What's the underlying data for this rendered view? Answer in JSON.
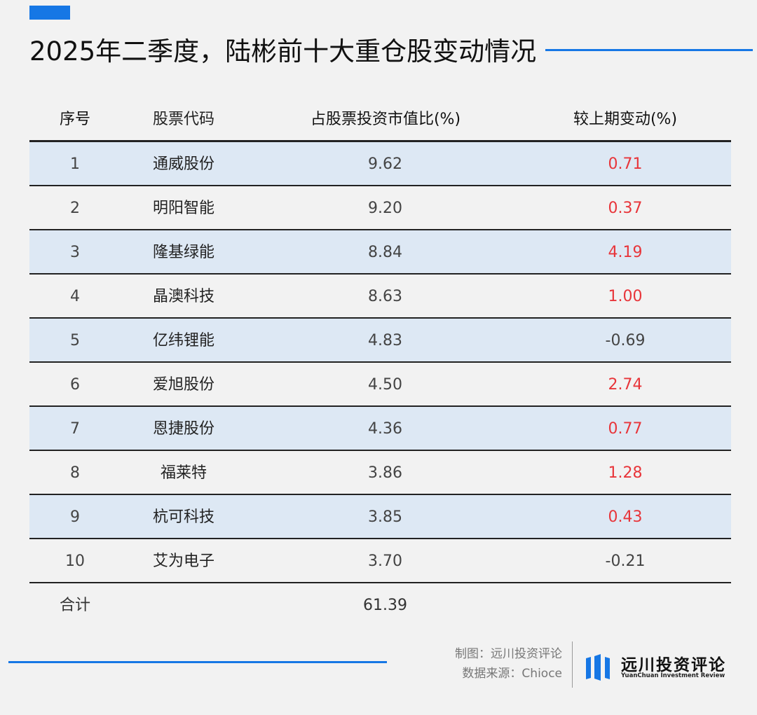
{
  "title": "2025年二季度，陆彬前十大重仓股变动情况",
  "colors": {
    "accent": "#1677e5",
    "positive": "#e8353a",
    "row_shade": "#dde8f4"
  },
  "chart_data": {
    "type": "table",
    "columns": [
      "序号",
      "股票代码",
      "占股票投资市值比(%)",
      "较上期变动(%)"
    ],
    "rows": [
      {
        "idx": "1",
        "name": "通威股份",
        "pct": "9.62",
        "chg": "0.71"
      },
      {
        "idx": "2",
        "name": "明阳智能",
        "pct": "9.20",
        "chg": "0.37"
      },
      {
        "idx": "3",
        "name": "隆基绿能",
        "pct": "8.84",
        "chg": "4.19"
      },
      {
        "idx": "4",
        "name": "晶澳科技",
        "pct": "8.63",
        "chg": "1.00"
      },
      {
        "idx": "5",
        "name": "亿纬锂能",
        "pct": "4.83",
        "chg": "-0.69"
      },
      {
        "idx": "6",
        "name": "爱旭股份",
        "pct": "4.50",
        "chg": "2.74"
      },
      {
        "idx": "7",
        "name": "恩捷股份",
        "pct": "4.36",
        "chg": "0.77"
      },
      {
        "idx": "8",
        "name": "福莱特",
        "pct": "3.86",
        "chg": "1.28"
      },
      {
        "idx": "9",
        "name": "杭可科技",
        "pct": "3.85",
        "chg": "0.43"
      },
      {
        "idx": "10",
        "name": "艾为电子",
        "pct": "3.70",
        "chg": "-0.21"
      }
    ],
    "total": {
      "label": "合计",
      "pct": "61.39"
    }
  },
  "footer": {
    "made_by": "制图：远川投资评论",
    "source": "数据来源：Chioce",
    "logo_text": "远川投资评论",
    "logo_sub": "YuanChuan Investment Review"
  }
}
